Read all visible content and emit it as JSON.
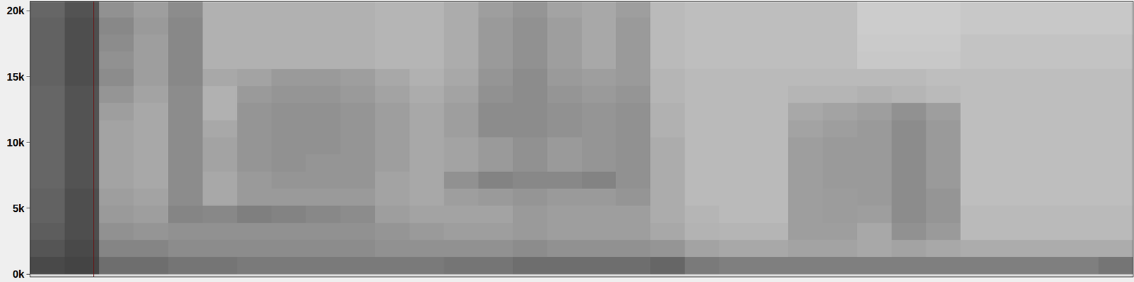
{
  "chart_data": {
    "type": "heatmap",
    "ylim": [
      -200,
      20700
    ],
    "yticks": [
      {
        "value": 0,
        "label": "0k"
      },
      {
        "value": 5000,
        "label": "5k"
      },
      {
        "value": 10000,
        "label": "10k"
      },
      {
        "value": 15000,
        "label": "15k"
      },
      {
        "value": 20000,
        "label": "20k"
      }
    ],
    "tick_labels": "y",
    "grid": false,
    "cursor": 1.34,
    "zlim": [
      0,
      100
    ],
    "y": [
      650,
      1950,
      3250,
      4550,
      5850,
      7150,
      8450,
      9750,
      11050,
      12350,
      13650,
      14950,
      16250,
      17550,
      18850,
      20150
    ],
    "z": [
      [
        70,
        72,
        55,
        55,
        52,
        52,
        50,
        50,
        50,
        50,
        50,
        50,
        52,
        52,
        55,
        55,
        55,
        55,
        58,
        50,
        48,
        48,
        48,
        48,
        48,
        48,
        48,
        48,
        48,
        48,
        48,
        52
      ],
      [
        65,
        70,
        45,
        45,
        42,
        42,
        42,
        42,
        42,
        42,
        40,
        40,
        40,
        40,
        42,
        40,
        40,
        40,
        38,
        32,
        30,
        30,
        32,
        32,
        30,
        32,
        30,
        28,
        28,
        28,
        28,
        28
      ],
      [
        62,
        68,
        40,
        38,
        40,
        40,
        40,
        40,
        40,
        40,
        38,
        36,
        34,
        34,
        36,
        34,
        34,
        34,
        30,
        25,
        24,
        24,
        34,
        34,
        30,
        40,
        36,
        22,
        22,
        22,
        22,
        22
      ],
      [
        60,
        68,
        36,
        34,
        45,
        44,
        48,
        46,
        44,
        42,
        34,
        32,
        32,
        32,
        36,
        34,
        34,
        34,
        28,
        24,
        22,
        22,
        34,
        35,
        34,
        42,
        38,
        22,
        22,
        22,
        22,
        22
      ],
      [
        60,
        68,
        34,
        32,
        42,
        30,
        36,
        36,
        36,
        36,
        32,
        30,
        34,
        36,
        38,
        36,
        36,
        38,
        28,
        22,
        22,
        22,
        34,
        35,
        36,
        42,
        38,
        20,
        20,
        20,
        20,
        20
      ],
      [
        58,
        66,
        32,
        30,
        42,
        30,
        36,
        38,
        38,
        38,
        32,
        30,
        40,
        46,
        44,
        44,
        46,
        40,
        28,
        22,
        22,
        22,
        34,
        36,
        36,
        42,
        36,
        20,
        20,
        20,
        20,
        20
      ],
      [
        58,
        66,
        32,
        30,
        42,
        32,
        38,
        40,
        38,
        38,
        34,
        30,
        32,
        36,
        40,
        36,
        38,
        40,
        28,
        22,
        22,
        22,
        34,
        36,
        36,
        42,
        36,
        20,
        20,
        20,
        20,
        20
      ],
      [
        58,
        66,
        32,
        30,
        42,
        32,
        38,
        40,
        40,
        38,
        34,
        30,
        32,
        36,
        40,
        36,
        38,
        40,
        28,
        22,
        22,
        22,
        34,
        36,
        36,
        42,
        36,
        20,
        20,
        20,
        20,
        20
      ],
      [
        58,
        66,
        32,
        30,
        42,
        30,
        38,
        40,
        40,
        38,
        34,
        30,
        34,
        42,
        42,
        40,
        38,
        40,
        26,
        22,
        22,
        22,
        32,
        34,
        36,
        42,
        36,
        20,
        20,
        20,
        20,
        20
      ],
      [
        58,
        66,
        34,
        30,
        42,
        26,
        38,
        40,
        40,
        38,
        34,
        30,
        34,
        42,
        42,
        40,
        38,
        40,
        26,
        22,
        22,
        22,
        30,
        32,
        34,
        40,
        34,
        20,
        20,
        20,
        20,
        20
      ],
      [
        58,
        66,
        38,
        32,
        42,
        26,
        36,
        38,
        38,
        36,
        32,
        28,
        32,
        40,
        42,
        38,
        36,
        38,
        24,
        22,
        22,
        22,
        24,
        24,
        26,
        24,
        22,
        20,
        20,
        20,
        20,
        20
      ],
      [
        60,
        68,
        42,
        34,
        44,
        30,
        32,
        36,
        36,
        34,
        30,
        26,
        30,
        38,
        42,
        36,
        34,
        36,
        24,
        22,
        22,
        22,
        22,
        22,
        22,
        22,
        20,
        20,
        20,
        20,
        20,
        20
      ],
      [
        60,
        68,
        40,
        34,
        44,
        26,
        26,
        26,
        26,
        26,
        24,
        24,
        28,
        36,
        40,
        34,
        30,
        36,
        22,
        20,
        20,
        20,
        20,
        20,
        16,
        16,
        16,
        18,
        18,
        18,
        18,
        18
      ],
      [
        60,
        68,
        42,
        34,
        44,
        26,
        26,
        26,
        26,
        26,
        24,
        24,
        28,
        36,
        40,
        34,
        30,
        36,
        22,
        20,
        20,
        20,
        20,
        20,
        15,
        15,
        15,
        18,
        18,
        18,
        18,
        18
      ],
      [
        60,
        68,
        44,
        36,
        44,
        26,
        26,
        26,
        26,
        26,
        24,
        24,
        28,
        36,
        40,
        34,
        30,
        36,
        22,
        20,
        20,
        20,
        20,
        20,
        14,
        14,
        14,
        16,
        16,
        16,
        16,
        16
      ],
      [
        58,
        66,
        40,
        34,
        42,
        26,
        26,
        26,
        26,
        26,
        24,
        24,
        28,
        34,
        38,
        32,
        30,
        34,
        22,
        20,
        20,
        20,
        20,
        20,
        14,
        14,
        14,
        16,
        16,
        16,
        16,
        16
      ]
    ]
  }
}
